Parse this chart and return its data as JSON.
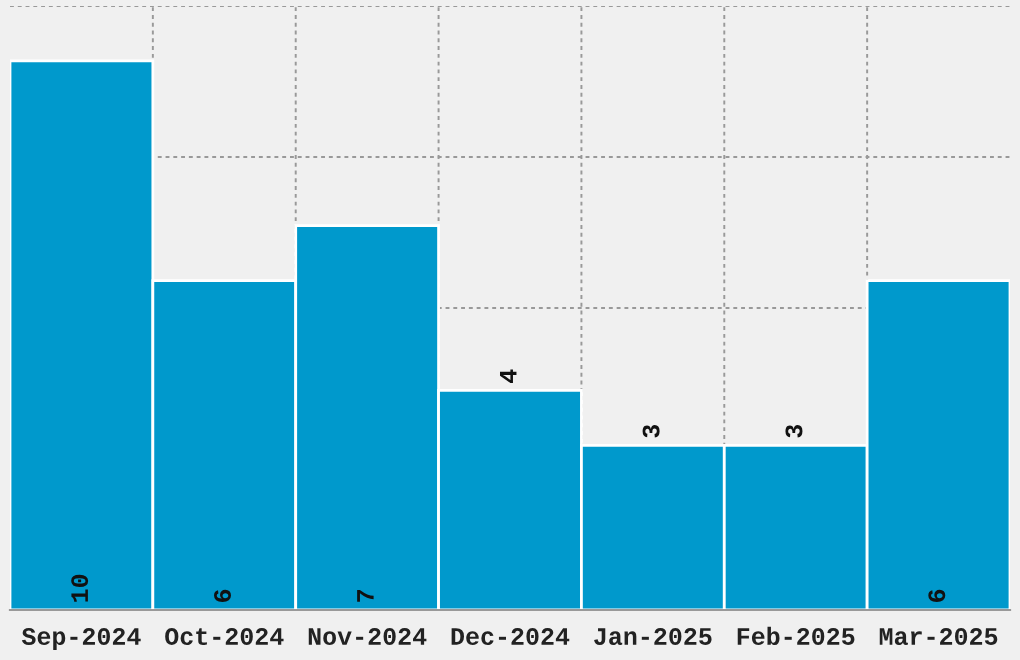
{
  "chart_data": {
    "type": "bar",
    "categories": [
      "Sep-2024",
      "Oct-2024",
      "Nov-2024",
      "Dec-2024",
      "Jan-2025",
      "Feb-2025",
      "Mar-2025"
    ],
    "values": [
      10,
      6,
      7,
      4,
      3,
      3,
      6
    ],
    "color": "#0099cc",
    "ylim": [
      0,
      11
    ],
    "tick_labels": "x",
    "grid": true,
    "data_labels": true
  }
}
